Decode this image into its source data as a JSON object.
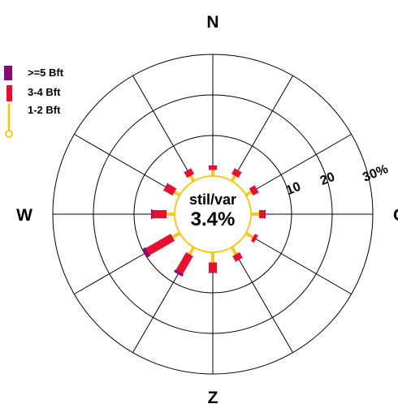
{
  "chart_data": {
    "type": "wind-rose",
    "title": "",
    "compass": {
      "north": "N",
      "south": "Z",
      "west": "W",
      "east": "O"
    },
    "calm": {
      "label": "stil/var",
      "value": "3.4%"
    },
    "rings": {
      "values": [
        10,
        20,
        30
      ],
      "labels": [
        "10",
        "20",
        "30%"
      ]
    },
    "sectors": 12,
    "directions_deg": [
      0,
      30,
      60,
      90,
      120,
      150,
      180,
      210,
      240,
      270,
      300,
      330
    ],
    "series": [
      {
        "name": "1-2 Bft",
        "color": "#f7c81e",
        "values": [
          1.5,
          1.5,
          1.5,
          2.0,
          2.0,
          2.0,
          2.5,
          2.0,
          2.0,
          2.0,
          1.5,
          1.5
        ]
      },
      {
        "name": "3-4 Bft",
        "color": "#e8102e",
        "values": [
          1.0,
          1.5,
          1.5,
          1.5,
          0.8,
          1.5,
          2.5,
          5.0,
          7.0,
          3.5,
          2.5,
          1.5
        ]
      },
      {
        "name": ">=5 Bft",
        "color": "#8b0a7a",
        "values": [
          0.1,
          0.1,
          0.1,
          0.1,
          0.1,
          0.1,
          0.1,
          0.7,
          1.0,
          0.3,
          0.1,
          0.1
        ]
      }
    ],
    "legend": {
      "position": "top-left",
      "entries": [
        ">=5 Bft",
        "3-4 Bft",
        "1-2 Bft"
      ]
    },
    "colors": {
      "calm_circle": "#f7c81e",
      "grid": "#000000"
    }
  }
}
